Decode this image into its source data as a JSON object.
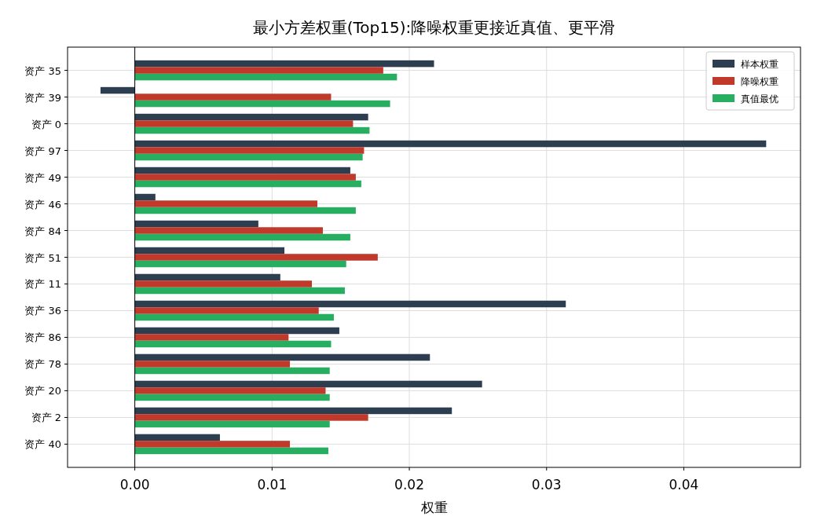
{
  "chart_data": {
    "type": "bar",
    "orientation": "horizontal",
    "title": "最小方差权重(Top15):降噪权重更接近真值、更平滑",
    "xlabel": "权重",
    "categories": [
      "资产 35",
      "资产 39",
      "资产 0",
      "资产 97",
      "资产 49",
      "资产 46",
      "资产 84",
      "资产 51",
      "资产 11",
      "资产 36",
      "资产 86",
      "资产 78",
      "资产 20",
      "资产 2",
      "资产 40"
    ],
    "series": [
      {
        "name": "样本权重",
        "color": "#2c3e50",
        "values": [
          0.0218,
          -0.0025,
          0.017,
          0.046,
          0.0157,
          0.0015,
          0.009,
          0.0109,
          0.0106,
          0.0314,
          0.0149,
          0.0215,
          0.0253,
          0.0231,
          0.0062
        ]
      },
      {
        "name": "降噪权重",
        "color": "#c0392b",
        "values": [
          0.0181,
          0.0143,
          0.0159,
          0.0167,
          0.0161,
          0.0133,
          0.0137,
          0.0177,
          0.0129,
          0.0134,
          0.0112,
          0.0113,
          0.0139,
          0.017,
          0.0113
        ]
      },
      {
        "name": "真值最优",
        "color": "#27ae60",
        "values": [
          0.0191,
          0.0186,
          0.0171,
          0.0166,
          0.0165,
          0.0161,
          0.0157,
          0.0154,
          0.0153,
          0.0145,
          0.0143,
          0.0142,
          0.0142,
          0.0142,
          0.0141
        ]
      }
    ],
    "xlim": [
      -0.0049,
      0.0485
    ],
    "xticks": [
      {
        "value": 0,
        "label": "0.00"
      },
      {
        "value": 0.01,
        "label": "0.01"
      },
      {
        "value": 0.02,
        "label": "0.02"
      },
      {
        "value": 0.03,
        "label": "0.03"
      },
      {
        "value": 0.04,
        "label": "0.04"
      }
    ],
    "ref_lines": [
      {
        "axis": "x",
        "value": 0,
        "color": "#000000"
      }
    ],
    "grid": true,
    "legend": "top right"
  }
}
